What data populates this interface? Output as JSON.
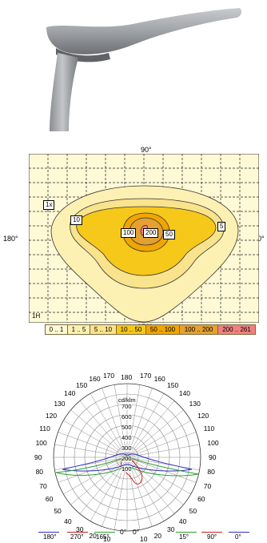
{
  "isolux": {
    "labels": {
      "top": "90°",
      "left": "180°",
      "right": "0°",
      "bottom": "270°",
      "corner": "1H"
    },
    "tags": [
      "1x",
      "10",
      "5",
      "100",
      "200",
      "50"
    ],
    "legend": [
      {
        "label": "0 .. 1",
        "color": "#fff9d6"
      },
      {
        "label": "1 .. 5",
        "color": "#fdf0b3"
      },
      {
        "label": "5 .. 10",
        "color": "#f9e38c"
      },
      {
        "label": "10 .. 50",
        "color": "#f6c81a"
      },
      {
        "label": "50 .. 100",
        "color": "#f0a500"
      },
      {
        "label": "100 .. 200",
        "color": "#e4a030"
      },
      {
        "label": "200 .. 261",
        "color": "#f08080"
      }
    ]
  },
  "polar": {
    "unit": "cd/klm",
    "radial_values": [
      "700",
      "600",
      "500",
      "400",
      "300",
      "200",
      "100"
    ],
    "angles_left": [
      "170",
      "160",
      "150",
      "140",
      "130",
      "120",
      "110",
      "100",
      "90",
      "80",
      "70",
      "60",
      "50",
      "40",
      "30",
      "20",
      "10"
    ],
    "angles_right": [
      "170",
      "160",
      "150",
      "140",
      "130",
      "120",
      "110",
      "100",
      "90",
      "80",
      "70",
      "60",
      "50",
      "40",
      "30",
      "20",
      "10"
    ],
    "top": "180",
    "bottom_left": "0°",
    "bottom_right": "0°",
    "legend": [
      {
        "label": "180°",
        "color": "#3030c0"
      },
      {
        "label": "270°",
        "color": "#d02020"
      },
      {
        "label": "165°",
        "color": "#30a030"
      },
      {
        "label": "15°",
        "color": "#30a030"
      },
      {
        "label": "90°",
        "color": "#d02020"
      },
      {
        "label": "0°",
        "color": "#3030c0"
      }
    ]
  }
}
